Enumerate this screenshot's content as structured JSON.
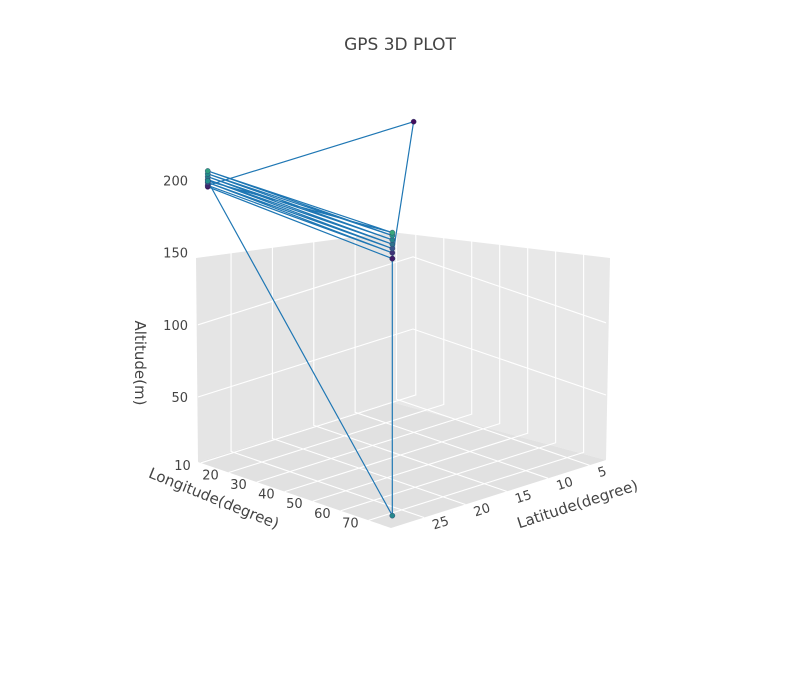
{
  "chart_data": {
    "type": "scatter3d",
    "mode": "lines+markers",
    "title": "GPS 3D PLOT",
    "xlabel": "Latitude(degree)",
    "ylabel": "Longitude(degree)",
    "zlabel": "Altitude(m)",
    "xticks": [
      5,
      10,
      15,
      20,
      25
    ],
    "yticks": [
      10,
      20,
      30,
      40,
      50,
      60,
      70
    ],
    "zticks": [
      50,
      100,
      150,
      200
    ],
    "xlim": [
      3,
      29
    ],
    "ylim": [
      9,
      78
    ],
    "zlim": [
      5,
      210
    ],
    "line_color": "#1f77b4",
    "marker_colorscale": [
      "#440154",
      "#3b528b",
      "#21918c",
      "#5ec962"
    ],
    "grid": true,
    "points": [
      {
        "x": 28.5,
        "y": 11.0,
        "z": 196,
        "c": 0.05
      },
      {
        "x": 28.5,
        "y": 77.0,
        "z": 190,
        "c": 0.1
      },
      {
        "x": 3.6,
        "y": 11.0,
        "z": 196,
        "c": 0.05
      },
      {
        "x": 28.5,
        "y": 11.0,
        "z": 197,
        "c": 0.15
      },
      {
        "x": 28.5,
        "y": 77.0,
        "z": 194,
        "c": 0.2
      },
      {
        "x": 28.5,
        "y": 11.0,
        "z": 199,
        "c": 0.3
      },
      {
        "x": 28.5,
        "y": 77.0,
        "z": 197,
        "c": 0.35
      },
      {
        "x": 28.5,
        "y": 11.0,
        "z": 201,
        "c": 0.45
      },
      {
        "x": 28.5,
        "y": 77.0,
        "z": 200,
        "c": 0.5
      },
      {
        "x": 28.5,
        "y": 11.0,
        "z": 203,
        "c": 0.55
      },
      {
        "x": 28.5,
        "y": 77.0,
        "z": 203,
        "c": 0.6
      },
      {
        "x": 28.5,
        "y": 11.0,
        "z": 205,
        "c": 0.65
      },
      {
        "x": 28.5,
        "y": 77.0,
        "z": 206,
        "c": 0.7
      },
      {
        "x": 28.5,
        "y": 11.0,
        "z": 207,
        "c": 0.75
      },
      {
        "x": 28.5,
        "y": 77.0,
        "z": 208,
        "c": 0.8
      },
      {
        "x": 28.5,
        "y": 11.0,
        "z": 200,
        "c": 0.65
      },
      {
        "x": 28.5,
        "y": 77.0,
        "z": 12,
        "c": 0.62
      },
      {
        "x": 28.5,
        "y": 77.0,
        "z": 190,
        "c": 0.1
      }
    ]
  }
}
